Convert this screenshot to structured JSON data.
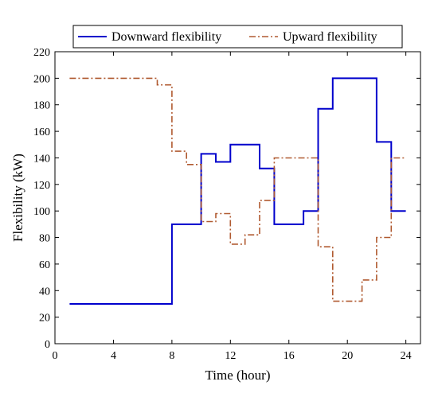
{
  "chart_data": {
    "type": "line",
    "xlabel": "Time (hour)",
    "ylabel": "Flexibility (kW)",
    "xlim": [
      0,
      25
    ],
    "ylim": [
      0,
      220
    ],
    "xticks": [
      0,
      4,
      8,
      12,
      16,
      20,
      24
    ],
    "yticks": [
      0,
      20,
      40,
      60,
      80,
      100,
      120,
      140,
      160,
      180,
      200,
      220
    ],
    "grid": false,
    "legend_position": "top",
    "series": [
      {
        "name": "Downward flexibility",
        "color": "#0000cc",
        "style": "solid",
        "step": true,
        "x": [
          1,
          8,
          8,
          10,
          10,
          11,
          11,
          12,
          12,
          14,
          14,
          15,
          15,
          17,
          17,
          18,
          18,
          19,
          19,
          22,
          22,
          23,
          23,
          24
        ],
        "y": [
          30,
          30,
          90,
          90,
          143,
          143,
          137,
          137,
          150,
          150,
          132,
          132,
          90,
          90,
          100,
          100,
          177,
          177,
          200,
          200,
          152,
          152,
          100,
          100
        ]
      },
      {
        "name": "Upward flexibility",
        "color": "#b05a30",
        "style": "dashdot",
        "step": true,
        "x": [
          1,
          7,
          7,
          8,
          8,
          9,
          9,
          10,
          10,
          11,
          11,
          12,
          12,
          13,
          13,
          14,
          14,
          15,
          15,
          18,
          18,
          19,
          19,
          21,
          21,
          22,
          22,
          23,
          23,
          24
        ],
        "y": [
          200,
          200,
          195,
          195,
          145,
          145,
          135,
          135,
          92,
          92,
          98,
          98,
          75,
          75,
          82,
          82,
          108,
          108,
          140,
          140,
          73,
          73,
          32,
          32,
          48,
          48,
          80,
          80,
          140,
          140
        ]
      }
    ]
  }
}
